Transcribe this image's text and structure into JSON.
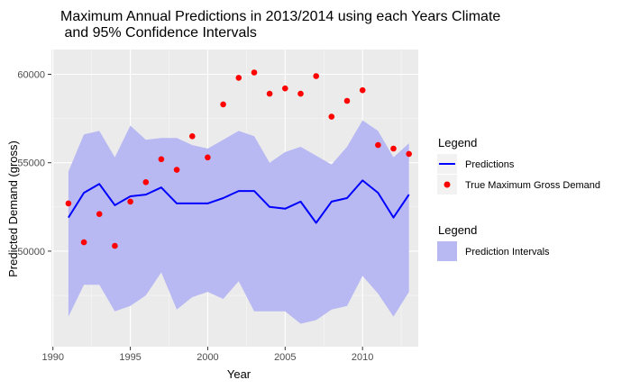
{
  "chart_data": {
    "type": "line",
    "title_lines": [
      "Maximum Annual Predictions in 2013/2014 using each Years Climate",
      " and 95% Confidence Intervals"
    ],
    "xlabel": "Year",
    "ylabel": "Predicted Demand (gross)",
    "xlim": [
      1989.9,
      2013.6
    ],
    "ylim": [
      44600,
      61400
    ],
    "x_ticks": [
      1990,
      1995,
      2000,
      2005,
      2010
    ],
    "x_tick_labels": [
      "1990",
      "1995",
      "2000",
      "2005",
      "2010"
    ],
    "y_ticks": [
      50000,
      55000,
      60000
    ],
    "y_tick_labels": [
      "50000",
      "55000",
      "60000"
    ],
    "grid": true,
    "background_color": "#ebebeb",
    "x": [
      1991,
      1992,
      1993,
      1994,
      1995,
      1996,
      1997,
      1998,
      1999,
      2000,
      2001,
      2002,
      2003,
      2004,
      2005,
      2006,
      2007,
      2008,
      2009,
      2010,
      2011,
      2012,
      2013
    ],
    "series": [
      {
        "name": "Predictions",
        "kind": "line",
        "color": "#0000ff",
        "values": [
          51900,
          53300,
          53800,
          52600,
          53100,
          53200,
          53600,
          52700,
          52700,
          52700,
          53000,
          53400,
          53400,
          52500,
          52400,
          52800,
          51600,
          52800,
          53000,
          54000,
          53300,
          51900,
          53200
        ]
      },
      {
        "name": "True Maximum Gross Demand",
        "kind": "points",
        "color": "#ff0000",
        "values": [
          52700,
          50500,
          52100,
          50300,
          52800,
          53900,
          55200,
          54600,
          56500,
          55300,
          58300,
          59800,
          60100,
          58900,
          59200,
          58900,
          59900,
          57600,
          58500,
          59100,
          56000,
          55800,
          55500
        ]
      }
    ],
    "intervals": {
      "name": "Prediction Intervals",
      "color": "#b8b8f2",
      "upper": [
        54500,
        56600,
        56800,
        55300,
        57100,
        56300,
        56400,
        56400,
        56000,
        55800,
        56300,
        56800,
        56500,
        55000,
        55600,
        55900,
        55400,
        54900,
        55900,
        57400,
        56800,
        55300,
        56100
      ],
      "lower": [
        46300,
        48100,
        48100,
        46600,
        46900,
        47500,
        48800,
        46700,
        47400,
        47700,
        47300,
        48300,
        46600,
        46600,
        46600,
        45900,
        46100,
        46700,
        46900,
        48600,
        47600,
        46300,
        47700
      ]
    },
    "legends": [
      {
        "title": "Legend",
        "entries": [
          {
            "label": "Predictions",
            "symbol": "line",
            "color": "#0000ff"
          },
          {
            "label": "True Maximum Gross Demand",
            "symbol": "point",
            "color": "#ff0000"
          }
        ]
      },
      {
        "title": "Legend",
        "entries": [
          {
            "label": "Prediction Intervals",
            "symbol": "fill",
            "color": "#b8b8f2"
          }
        ]
      }
    ],
    "legend_position": "right"
  }
}
